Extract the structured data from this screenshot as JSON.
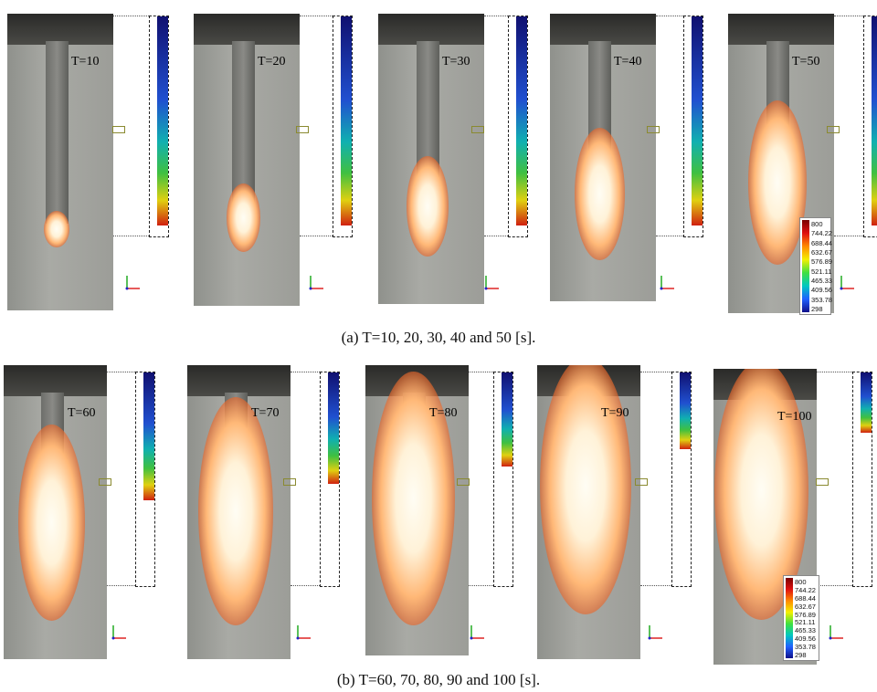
{
  "figures": [
    {
      "caption": "(a) T=10, 20, 30, 40 and 50 [s].",
      "panels": [
        {
          "label": "T=10"
        },
        {
          "label": "T=20"
        },
        {
          "label": "T=30"
        },
        {
          "label": "T=40"
        },
        {
          "label": "T=50"
        }
      ],
      "colorbar": {
        "labels": [
          800,
          744.22,
          688.44,
          632.67,
          576.89,
          521.11,
          465.33,
          409.56,
          353.78,
          298
        ]
      }
    },
    {
      "caption": "(b) T=60, 70, 80, 90 and 100 [s].",
      "panels": [
        {
          "label": "T=60"
        },
        {
          "label": "T=70"
        },
        {
          "label": "T=80"
        },
        {
          "label": "T=90"
        },
        {
          "label": "T=100"
        }
      ],
      "colorbar": {
        "labels": [
          800,
          744.22,
          688.44,
          632.67,
          576.89,
          521.11,
          465.33,
          409.56,
          353.78,
          298
        ]
      }
    }
  ]
}
